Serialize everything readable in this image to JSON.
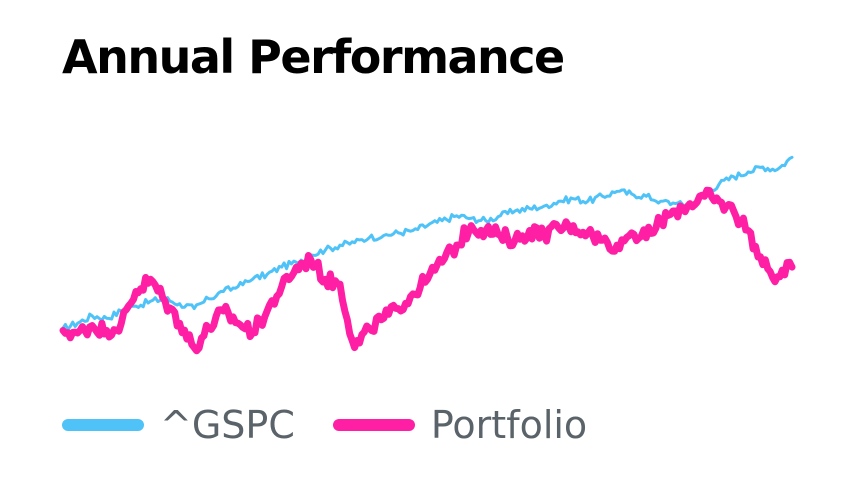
{
  "header": {
    "title": "Annual Performance"
  },
  "colors": {
    "background": "#ffffff",
    "title": "#000000",
    "legend_text": "#5b636a"
  },
  "chart_data": {
    "type": "line",
    "title": "Annual Performance",
    "xlabel": "",
    "ylabel": "",
    "x_tick_labels": [],
    "y_tick_labels": [],
    "grid": false,
    "legend_position": "bottom-left",
    "xlim": [
      0,
      100
    ],
    "ylim": [
      0,
      100
    ],
    "x": [
      0,
      2,
      4,
      6,
      8,
      10,
      12,
      14,
      16,
      18,
      20,
      22,
      24,
      26,
      28,
      30,
      32,
      34,
      36,
      38,
      40,
      42,
      44,
      46,
      48,
      50,
      52,
      54,
      56,
      58,
      60,
      62,
      64,
      66,
      68,
      70,
      72,
      74,
      76,
      78,
      80,
      82,
      84,
      86,
      88,
      90,
      92,
      94,
      96,
      98,
      100
    ],
    "series": [
      {
        "name": "^GSPC",
        "color": "#4fc3f7",
        "stroke_width": 3,
        "values": [
          18,
          20,
          23,
          22,
          25,
          27,
          29,
          30,
          28,
          26,
          30,
          33,
          35,
          38,
          40,
          43,
          45,
          48,
          50,
          52,
          53,
          55,
          56,
          57,
          58,
          60,
          62,
          64,
          63,
          62,
          64,
          66,
          67,
          68,
          70,
          71,
          70,
          72,
          74,
          73,
          72,
          70,
          69,
          68,
          73,
          77,
          80,
          82,
          84,
          83,
          88
        ]
      },
      {
        "name": "Portfolio",
        "color": "#ff1fa5",
        "stroke_width": 7,
        "values": [
          17,
          16,
          19,
          17,
          20,
          33,
          38,
          29,
          20,
          10,
          18,
          25,
          20,
          16,
          25,
          35,
          43,
          46,
          38,
          36,
          10,
          18,
          22,
          26,
          32,
          38,
          45,
          52,
          60,
          58,
          56,
          54,
          58,
          56,
          59,
          60,
          57,
          54,
          52,
          57,
          55,
          62,
          66,
          69,
          72,
          70,
          66,
          58,
          44,
          39,
          43
        ]
      }
    ]
  }
}
